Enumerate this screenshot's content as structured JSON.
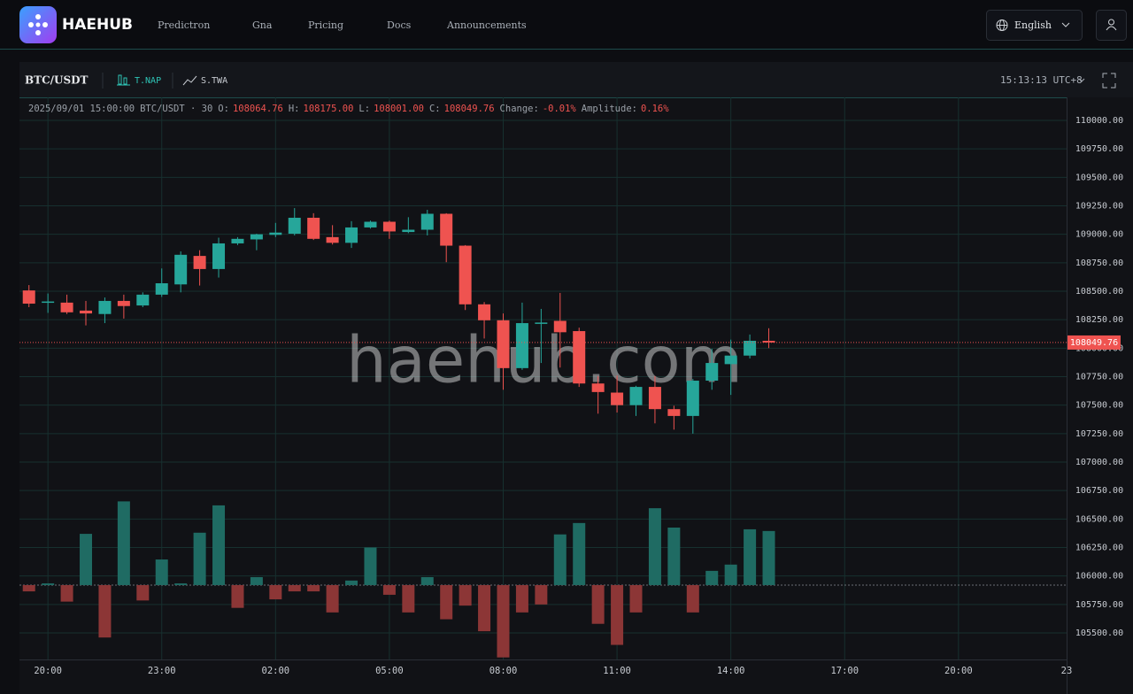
{
  "nav": {
    "brand": "HAEHUB",
    "links": [
      "Predictron",
      "Gna",
      "Pricing",
      "Docs",
      "Announcements"
    ],
    "language": "English"
  },
  "toolbar": {
    "symbol": "BTC/USDT",
    "indicators": [
      "T.NAP",
      "S.TWA"
    ],
    "clock": "15:13:13 UTC+8"
  },
  "info": {
    "datetime": "2025/09/01 15:00:00",
    "symbol": "BTC/USDT · 30",
    "fields": [
      {
        "label": "O:",
        "value": "108064.76"
      },
      {
        "label": "H:",
        "value": "108175.00"
      },
      {
        "label": "L:",
        "value": "108001.00"
      },
      {
        "label": "C:",
        "value": "108049.76"
      },
      {
        "label": "Change:",
        "value": "-0.01%"
      },
      {
        "label": "Amplitude:",
        "value": "0.16%"
      }
    ]
  },
  "watermark": "haehub.com",
  "chart_data": {
    "type": "candlestick",
    "up_color": "#26a69a",
    "down_color": "#ef5350",
    "grid": true,
    "candles": [
      {
        "open": 108507,
        "high": 108554,
        "low": 108360,
        "close": 108391
      },
      {
        "open": 108400,
        "high": 108480,
        "low": 108310,
        "close": 108410
      },
      {
        "open": 108400,
        "high": 108470,
        "low": 108300,
        "close": 108315
      },
      {
        "open": 108330,
        "high": 108415,
        "low": 108200,
        "close": 108305
      },
      {
        "open": 108300,
        "high": 108445,
        "low": 108220,
        "close": 108415
      },
      {
        "open": 108415,
        "high": 108470,
        "low": 108260,
        "close": 108370
      },
      {
        "open": 108375,
        "high": 108490,
        "low": 108360,
        "close": 108470
      },
      {
        "open": 108470,
        "high": 108700,
        "low": 108450,
        "close": 108570
      },
      {
        "open": 108560,
        "high": 108850,
        "low": 108490,
        "close": 108820
      },
      {
        "open": 108810,
        "high": 108860,
        "low": 108550,
        "close": 108695
      },
      {
        "open": 108695,
        "high": 108970,
        "low": 108620,
        "close": 108920
      },
      {
        "open": 108920,
        "high": 108975,
        "low": 108905,
        "close": 108960
      },
      {
        "open": 108955,
        "high": 109005,
        "low": 108860,
        "close": 109000
      },
      {
        "open": 108995,
        "high": 109100,
        "low": 108975,
        "close": 109015
      },
      {
        "open": 109005,
        "high": 109230,
        "low": 108990,
        "close": 109145
      },
      {
        "open": 109145,
        "high": 109185,
        "low": 108950,
        "close": 108960
      },
      {
        "open": 108975,
        "high": 109080,
        "low": 108910,
        "close": 108925
      },
      {
        "open": 108925,
        "high": 109115,
        "low": 108880,
        "close": 109060
      },
      {
        "open": 109060,
        "high": 109120,
        "low": 109050,
        "close": 109110
      },
      {
        "open": 109110,
        "high": 109120,
        "low": 108960,
        "close": 109025
      },
      {
        "open": 109020,
        "high": 109150,
        "low": 109010,
        "close": 109040
      },
      {
        "open": 109040,
        "high": 109215,
        "low": 108990,
        "close": 109180
      },
      {
        "open": 109180,
        "high": 109185,
        "low": 108755,
        "close": 108900
      },
      {
        "open": 108900,
        "high": 108905,
        "low": 108335,
        "close": 108385
      },
      {
        "open": 108385,
        "high": 108405,
        "low": 108085,
        "close": 108245
      },
      {
        "open": 108245,
        "high": 108305,
        "low": 107635,
        "close": 107825
      },
      {
        "open": 107825,
        "high": 108400,
        "low": 107810,
        "close": 108220
      },
      {
        "open": 108215,
        "high": 108345,
        "low": 107870,
        "close": 108225
      },
      {
        "open": 108240,
        "high": 108485,
        "low": 107830,
        "close": 108140
      },
      {
        "open": 108150,
        "high": 108180,
        "low": 107660,
        "close": 107690
      },
      {
        "open": 107690,
        "high": 107755,
        "low": 107425,
        "close": 107615
      },
      {
        "open": 107610,
        "high": 107760,
        "low": 107435,
        "close": 107500
      },
      {
        "open": 107500,
        "high": 107670,
        "low": 107405,
        "close": 107660
      },
      {
        "open": 107660,
        "high": 107755,
        "low": 107340,
        "close": 107465
      },
      {
        "open": 107465,
        "high": 107495,
        "low": 107285,
        "close": 107405
      },
      {
        "open": 107405,
        "high": 107730,
        "low": 107250,
        "close": 107715
      },
      {
        "open": 107715,
        "high": 107995,
        "low": 107635,
        "close": 107870
      },
      {
        "open": 107860,
        "high": 108075,
        "low": 107590,
        "close": 107935
      },
      {
        "open": 107935,
        "high": 108120,
        "low": 107910,
        "close": 108065
      },
      {
        "open": 108064.76,
        "high": 108175,
        "low": 108001,
        "close": 108049.76
      }
    ],
    "indicator": {
      "baseline": 105920,
      "up_color": "#1f6b63",
      "down_color": "#8c3636",
      "values": [
        105865,
        105935,
        105775,
        106370,
        105460,
        106655,
        105785,
        106145,
        105935,
        106380,
        106620,
        105720,
        105990,
        105795,
        105865,
        105865,
        105680,
        105960,
        106250,
        105835,
        105680,
        105990,
        105620,
        105740,
        105515,
        105285,
        105680,
        105750,
        106365,
        106465,
        105580,
        105395,
        105680,
        106595,
        106425,
        105680,
        106045,
        106100,
        106410,
        106395
      ]
    },
    "last_price": 108049.76,
    "ylim": [
      105267,
      110202
    ],
    "yticks": [
      {
        "value": 110000,
        "label": "110000.00"
      },
      {
        "value": 109750,
        "label": "109750.00"
      },
      {
        "value": 109500,
        "label": "109500.00"
      },
      {
        "value": 109250,
        "label": "109250.00"
      },
      {
        "value": 109000,
        "label": "109000.00"
      },
      {
        "value": 108750,
        "label": "108750.00"
      },
      {
        "value": 108500,
        "label": "108500.00"
      },
      {
        "value": 108250,
        "label": "108250.00"
      },
      {
        "value": 108000,
        "label": "108000.00"
      },
      {
        "value": 107750,
        "label": "107750.00"
      },
      {
        "value": 107500,
        "label": "107500.00"
      },
      {
        "value": 107250,
        "label": "107250.00"
      },
      {
        "value": 107000,
        "label": "107000.00"
      },
      {
        "value": 106750,
        "label": "106750.00"
      },
      {
        "value": 106500,
        "label": "106500.00"
      },
      {
        "value": 106250,
        "label": "106250.00"
      },
      {
        "value": 106000,
        "label": "106000.00"
      },
      {
        "value": 105750,
        "label": "105750.00"
      },
      {
        "value": 105500,
        "label": "105500.00"
      }
    ],
    "xlim": [
      -0.5,
      54.7
    ],
    "xticks": [
      {
        "value": 1,
        "label": "20:00"
      },
      {
        "value": 7,
        "label": "23:00"
      },
      {
        "value": 13,
        "label": "02:00"
      },
      {
        "value": 19,
        "label": "05:00"
      },
      {
        "value": 25,
        "label": "08:00"
      },
      {
        "value": 31,
        "label": "11:00"
      },
      {
        "value": 37,
        "label": "14:00"
      },
      {
        "value": 43,
        "label": "17:00"
      },
      {
        "value": 49,
        "label": "20:00"
      },
      {
        "value": 55,
        "label": "23"
      }
    ]
  }
}
